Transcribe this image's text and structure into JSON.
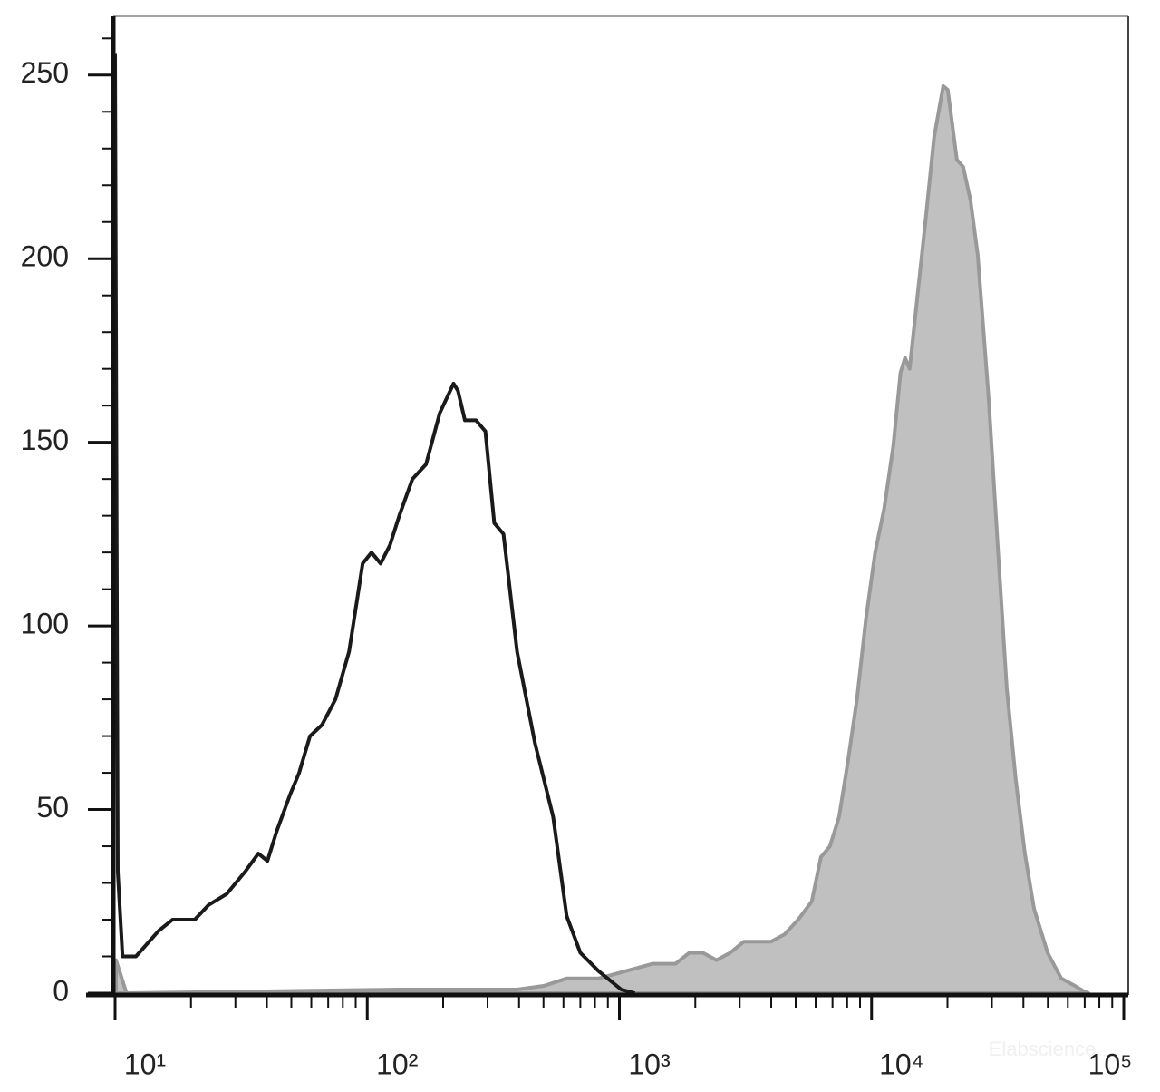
{
  "chart_data": {
    "type": "histogram",
    "watermark": "Elabscience",
    "xscale": "log",
    "xlim": [
      10,
      100000
    ],
    "xticks": [
      {
        "value": 10,
        "label": "10¹"
      },
      {
        "value": 100,
        "label": "10²"
      },
      {
        "value": 1000,
        "label": "10³"
      },
      {
        "value": 10000,
        "label": "10⁴"
      },
      {
        "value": 100000,
        "label": "10⁵"
      }
    ],
    "xminorticks": [
      20,
      30,
      40,
      50,
      60,
      70,
      80,
      90,
      200,
      300,
      400,
      500,
      600,
      700,
      800,
      900,
      2000,
      3000,
      4000,
      5000,
      6000,
      7000,
      8000,
      9000,
      20000,
      30000,
      40000,
      50000,
      60000,
      70000,
      80000,
      90000
    ],
    "ylim": [
      0,
      266
    ],
    "yticks": [
      0,
      50,
      100,
      150,
      200,
      250
    ],
    "yminorticks": [
      10,
      20,
      30,
      40,
      60,
      70,
      80,
      90,
      110,
      120,
      130,
      140,
      160,
      170,
      180,
      190,
      210,
      220,
      230,
      240,
      260
    ],
    "series": [
      {
        "color": "#999999",
        "fill": true,
        "fill_color": "#c0c0c0",
        "x": [
          10.08,
          11.1,
          134,
          259,
          393,
          503,
          618,
          827,
          1060,
          1358,
          1671,
          1892,
          2143,
          2427,
          2748,
          3112,
          3990,
          4518,
          5117,
          5794,
          6295,
          6839,
          7430,
          8054,
          8750,
          9506,
          10330,
          11220,
          12190,
          13030,
          13580,
          14160,
          15000,
          16290,
          17700,
          19230,
          20040,
          21780,
          23070,
          24660,
          26360,
          29110,
          31620,
          34360,
          37330,
          40550,
          44060,
          49890,
          56490,
          63970,
          69500,
          72440
        ],
        "values": [
          9,
          0,
          1,
          1,
          1,
          2,
          4,
          4,
          6,
          8,
          8,
          11,
          11,
          9,
          11,
          14,
          14,
          16,
          20,
          25,
          37,
          40,
          48,
          63,
          80,
          102,
          120,
          132,
          149,
          169,
          173,
          170,
          186,
          209,
          233,
          247,
          246,
          227,
          225,
          216,
          201,
          162,
          122,
          83,
          58,
          38,
          23,
          11,
          4,
          2,
          0.5,
          0
        ]
      },
      {
        "color": "#1a1a1a",
        "fill": false,
        "x": [
          10,
          10.25,
          10.7,
          12.1,
          14.9,
          16.9,
          20.7,
          23.5,
          27.7,
          32.7,
          37,
          40.2,
          43.7,
          49.4,
          53.7,
          59.3,
          66.1,
          74.8,
          84.7,
          95.9,
          104,
          113,
          123,
          134,
          151,
          171,
          194,
          220,
          229,
          244,
          270,
          294,
          319,
          347,
          393,
          463,
          546,
          618,
          700,
          827,
          1017,
          1151
        ],
        "values": [
          256,
          33,
          10,
          10,
          17,
          20,
          20,
          24,
          27,
          33,
          38,
          36,
          44,
          54,
          60,
          70,
          73,
          80,
          93,
          117,
          120,
          117,
          122,
          130,
          140,
          144,
          158,
          166,
          164,
          156,
          156,
          153,
          128,
          125,
          93,
          68,
          48,
          21,
          11,
          6,
          1,
          0
        ]
      }
    ]
  }
}
